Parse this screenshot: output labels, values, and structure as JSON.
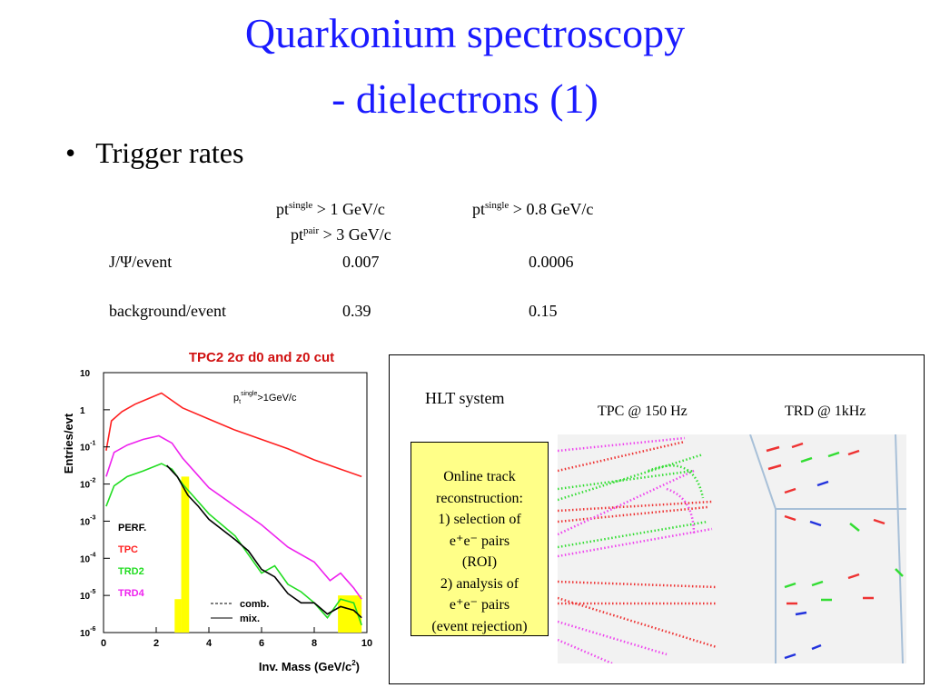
{
  "title": {
    "line1": "Quarkonium spectroscopy",
    "line2": "- dielectrons (1)"
  },
  "bullet": {
    "marker": "•",
    "text": "Trigger rates"
  },
  "table": {
    "col1": {
      "base": "pt",
      "sup": "single",
      "rest": " > 1 GeV/c"
    },
    "col1b": {
      "base": "pt",
      "sup": "pair",
      "rest": " > 3 GeV/c"
    },
    "col2": {
      "base": "pt",
      "sup": "single",
      "rest": " > 0.8 GeV/c"
    },
    "rows": [
      {
        "label": "J/Ψ/event",
        "v1": "0.007",
        "v2": "0.0006"
      },
      {
        "label": "background/event",
        "v1": "0.39",
        "v2": "0.15"
      }
    ]
  },
  "chart_data": {
    "type": "line",
    "title": "TPC2 2σ d0 and z0 cut",
    "cut_label": {
      "base": "p",
      "sub": "t",
      "sup": "single",
      "rest": ">1GeV/c"
    },
    "xlabel": "Inv. Mass (GeV/c",
    "xlabel_sup": "2",
    "xlabel_close": ")",
    "ylabel": "Entries/evt",
    "xlim": [
      0,
      10
    ],
    "ylim_log10": [
      -6,
      1
    ],
    "x_ticks": [
      "0",
      "2",
      "4",
      "6",
      "8",
      "10"
    ],
    "y_ticks": [
      {
        "exp": 1,
        "base": "10",
        "sup": ""
      },
      {
        "exp": 0,
        "base": "1",
        "sup": ""
      },
      {
        "exp": -1,
        "base": "10",
        "sup": "-1"
      },
      {
        "exp": -2,
        "base": "10",
        "sup": "-2"
      },
      {
        "exp": -3,
        "base": "10",
        "sup": "-3"
      },
      {
        "exp": -4,
        "base": "10",
        "sup": "-4"
      },
      {
        "exp": -5,
        "base": "10",
        "sup": "-5"
      },
      {
        "exp": -6,
        "base": "10",
        "sup": "-6"
      }
    ],
    "legend": [
      {
        "name": "PERF.",
        "color": "#000000"
      },
      {
        "name": "TPC",
        "color": "#ff2020"
      },
      {
        "name": "TRD2",
        "color": "#22dd22"
      },
      {
        "name": "TRD4",
        "color": "#ee22ee"
      }
    ],
    "line_legend": [
      {
        "name": "comb.",
        "style": "dashed"
      },
      {
        "name": "mix.",
        "style": "solid"
      }
    ],
    "series": [
      {
        "name": "TPC",
        "color": "#ff2020",
        "points": [
          [
            0.1,
            -1.1
          ],
          [
            0.3,
            -0.3
          ],
          [
            0.7,
            -0.05
          ],
          [
            1.2,
            0.15
          ],
          [
            1.7,
            0.3
          ],
          [
            2.2,
            0.45
          ],
          [
            2.5,
            0.3
          ],
          [
            3,
            0.05
          ],
          [
            4,
            -0.25
          ],
          [
            5,
            -0.55
          ],
          [
            6,
            -0.8
          ],
          [
            7,
            -1.05
          ],
          [
            8,
            -1.35
          ],
          [
            9,
            -1.6
          ],
          [
            9.8,
            -1.8
          ]
        ]
      },
      {
        "name": "TRD4",
        "color": "#ee22ee",
        "points": [
          [
            0.1,
            -1.8
          ],
          [
            0.4,
            -1.15
          ],
          [
            0.9,
            -0.95
          ],
          [
            1.5,
            -0.8
          ],
          [
            2.1,
            -0.7
          ],
          [
            2.6,
            -0.9
          ],
          [
            3,
            -1.3
          ],
          [
            3.5,
            -1.7
          ],
          [
            4,
            -2.1
          ],
          [
            5,
            -2.6
          ],
          [
            6,
            -3.1
          ],
          [
            7,
            -3.7
          ],
          [
            8,
            -4.1
          ],
          [
            8.6,
            -4.6
          ],
          [
            9,
            -4.4
          ],
          [
            9.5,
            -4.8
          ],
          [
            9.8,
            -5.1
          ]
        ]
      },
      {
        "name": "TRD2",
        "color": "#22dd22",
        "points": [
          [
            0.1,
            -2.6
          ],
          [
            0.4,
            -2.05
          ],
          [
            0.9,
            -1.8
          ],
          [
            1.5,
            -1.65
          ],
          [
            2.2,
            -1.45
          ],
          [
            2.6,
            -1.6
          ],
          [
            3,
            -2.0
          ],
          [
            3.5,
            -2.4
          ],
          [
            4,
            -2.8
          ],
          [
            5,
            -3.4
          ],
          [
            5.5,
            -3.9
          ],
          [
            6,
            -4.4
          ],
          [
            6.5,
            -4.2
          ],
          [
            7,
            -4.7
          ],
          [
            7.5,
            -4.9
          ],
          [
            8,
            -5.2
          ],
          [
            8.5,
            -5.6
          ],
          [
            9,
            -5.1
          ],
          [
            9.5,
            -5.2
          ],
          [
            9.8,
            -5.8
          ]
        ]
      },
      {
        "name": "PERF.",
        "color": "#000000",
        "points": [
          [
            2.4,
            -1.5
          ],
          [
            2.8,
            -1.8
          ],
          [
            3.2,
            -2.3
          ],
          [
            3.6,
            -2.6
          ],
          [
            4,
            -2.95
          ],
          [
            5,
            -3.5
          ],
          [
            5.5,
            -3.8
          ],
          [
            6,
            -4.3
          ],
          [
            6.5,
            -4.5
          ],
          [
            7,
            -4.95
          ],
          [
            7.5,
            -5.2
          ],
          [
            8,
            -5.2
          ],
          [
            8.5,
            -5.5
          ],
          [
            9,
            -5.3
          ],
          [
            9.5,
            -5.4
          ],
          [
            9.8,
            -5.6
          ]
        ]
      }
    ],
    "bars": [
      {
        "x0": 2.7,
        "x1": 2.95,
        "top_exp": -5.1
      },
      {
        "x0": 2.95,
        "x1": 3.25,
        "top_exp": -1.8
      },
      {
        "x0": 8.9,
        "x1": 9.8,
        "top_exp": -5.0
      }
    ],
    "bar_color": "#ffff00"
  },
  "hlt": {
    "label": "HLT system",
    "tpc_label": "TPC @ 150 Hz",
    "trd_label": "TRD @ 1kHz",
    "box_lines": [
      "Online track",
      "reconstruction:",
      "1) selection of",
      "e⁺e⁻ pairs",
      "(ROI)",
      "2) analysis of",
      "e⁺e⁻ pairs",
      "(event rejection)"
    ]
  }
}
